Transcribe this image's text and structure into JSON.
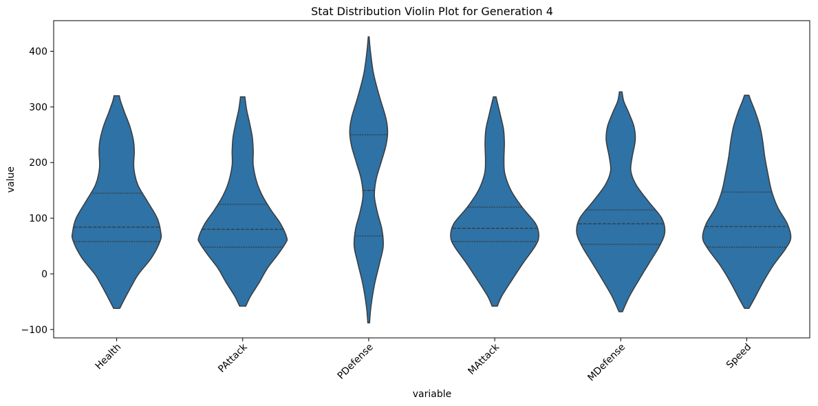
{
  "chart_data": {
    "type": "violin",
    "title": "Stat Distribution Violin Plot for Generation 4",
    "xlabel": "variable",
    "ylabel": "value",
    "ylim": [
      -115,
      455
    ],
    "yticks": [
      -100,
      0,
      100,
      200,
      300,
      400
    ],
    "ytick_labels": [
      "−100",
      "0",
      "100",
      "200",
      "300",
      "400"
    ],
    "grid": false,
    "fill_color": "#2e72a6",
    "edge_color": "#3a3a3a",
    "categories": [
      "Health",
      "PAttack",
      "PDefense",
      "MAttack",
      "MDefense",
      "Speed"
    ],
    "violins": [
      {
        "name": "Health",
        "min": -62,
        "max": 320,
        "quartiles": [
          58,
          84,
          145
        ],
        "profile": [
          [
            -62,
            0.07
          ],
          [
            -45,
            0.18
          ],
          [
            -20,
            0.35
          ],
          [
            0,
            0.5
          ],
          [
            30,
            0.8
          ],
          [
            60,
            0.99
          ],
          [
            75,
            1.0
          ],
          [
            100,
            0.92
          ],
          [
            130,
            0.7
          ],
          [
            160,
            0.48
          ],
          [
            190,
            0.39
          ],
          [
            220,
            0.4
          ],
          [
            240,
            0.38
          ],
          [
            265,
            0.3
          ],
          [
            290,
            0.18
          ],
          [
            310,
            0.09
          ],
          [
            320,
            0.06
          ]
        ]
      },
      {
        "name": "PAttack",
        "min": -58,
        "max": 318,
        "quartiles": [
          48,
          80,
          125
        ],
        "profile": [
          [
            -58,
            0.07
          ],
          [
            -40,
            0.18
          ],
          [
            -15,
            0.38
          ],
          [
            10,
            0.56
          ],
          [
            35,
            0.8
          ],
          [
            55,
            0.97
          ],
          [
            65,
            1.0
          ],
          [
            90,
            0.86
          ],
          [
            115,
            0.64
          ],
          [
            140,
            0.45
          ],
          [
            165,
            0.32
          ],
          [
            195,
            0.24
          ],
          [
            220,
            0.24
          ],
          [
            245,
            0.22
          ],
          [
            270,
            0.16
          ],
          [
            295,
            0.09
          ],
          [
            318,
            0.05
          ]
        ]
      },
      {
        "name": "PDefense",
        "min": -88,
        "max": 426,
        "quartiles": [
          68,
          150,
          250
        ],
        "profile": [
          [
            -88,
            0.02
          ],
          [
            -60,
            0.05
          ],
          [
            -20,
            0.13
          ],
          [
            20,
            0.25
          ],
          [
            50,
            0.33
          ],
          [
            80,
            0.3
          ],
          [
            110,
            0.2
          ],
          [
            140,
            0.13
          ],
          [
            170,
            0.17
          ],
          [
            200,
            0.28
          ],
          [
            230,
            0.39
          ],
          [
            255,
            0.43
          ],
          [
            280,
            0.39
          ],
          [
            320,
            0.24
          ],
          [
            360,
            0.11
          ],
          [
            400,
            0.04
          ],
          [
            426,
            0.01
          ]
        ]
      },
      {
        "name": "MAttack",
        "min": -58,
        "max": 318,
        "quartiles": [
          58,
          82,
          120
        ],
        "profile": [
          [
            -58,
            0.06
          ],
          [
            -40,
            0.16
          ],
          [
            -10,
            0.4
          ],
          [
            20,
            0.65
          ],
          [
            50,
            0.92
          ],
          [
            68,
            1.0
          ],
          [
            90,
            0.93
          ],
          [
            120,
            0.62
          ],
          [
            150,
            0.37
          ],
          [
            180,
            0.23
          ],
          [
            205,
            0.21
          ],
          [
            235,
            0.22
          ],
          [
            260,
            0.2
          ],
          [
            285,
            0.13
          ],
          [
            305,
            0.07
          ],
          [
            318,
            0.03
          ]
        ]
      },
      {
        "name": "MDefense",
        "min": -68,
        "max": 327,
        "quartiles": [
          53,
          90,
          115
        ],
        "profile": [
          [
            -68,
            0.04
          ],
          [
            -40,
            0.2
          ],
          [
            -10,
            0.42
          ],
          [
            20,
            0.65
          ],
          [
            50,
            0.88
          ],
          [
            75,
            1.0
          ],
          [
            100,
            0.93
          ],
          [
            130,
            0.63
          ],
          [
            160,
            0.35
          ],
          [
            185,
            0.23
          ],
          [
            210,
            0.26
          ],
          [
            240,
            0.33
          ],
          [
            265,
            0.3
          ],
          [
            290,
            0.18
          ],
          [
            310,
            0.07
          ],
          [
            327,
            0.03
          ]
        ]
      },
      {
        "name": "Speed",
        "min": -62,
        "max": 321,
        "quartiles": [
          48,
          85,
          147
        ],
        "profile": [
          [
            -62,
            0.05
          ],
          [
            -45,
            0.17
          ],
          [
            -15,
            0.37
          ],
          [
            15,
            0.6
          ],
          [
            45,
            0.88
          ],
          [
            65,
            1.0
          ],
          [
            90,
            0.92
          ],
          [
            120,
            0.7
          ],
          [
            150,
            0.56
          ],
          [
            180,
            0.48
          ],
          [
            210,
            0.41
          ],
          [
            240,
            0.36
          ],
          [
            265,
            0.3
          ],
          [
            290,
            0.2
          ],
          [
            310,
            0.1
          ],
          [
            321,
            0.05
          ]
        ]
      }
    ]
  }
}
